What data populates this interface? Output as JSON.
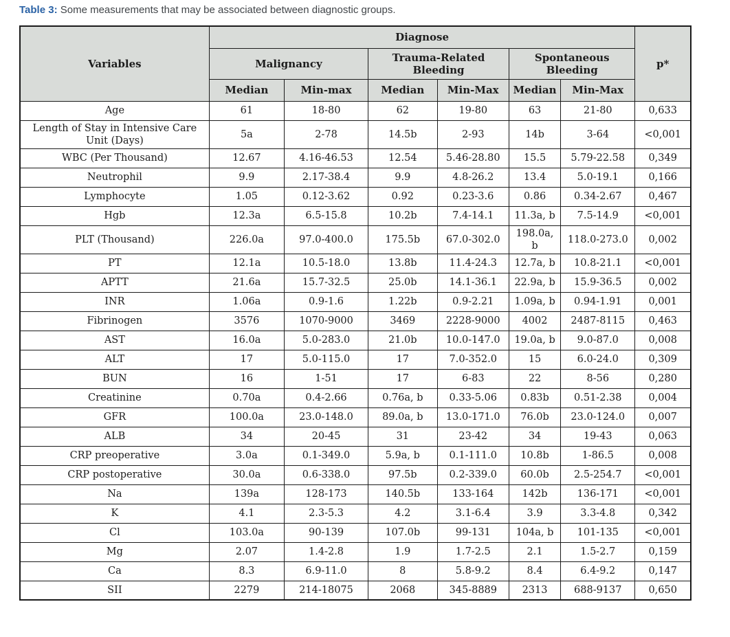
{
  "caption": {
    "label": "Table 3:",
    "text": " Some measurements that may be associated between diagnostic groups."
  },
  "colors": {
    "accent_blue": "#2a62a5",
    "header_bg": "#d9dcd9",
    "border": "#1a1a1a",
    "body_text": "#1d1d1d",
    "caption_text": "#414549"
  },
  "table": {
    "header": {
      "variables": "Variables",
      "diagnose": "Diagnose",
      "p_value": "p*",
      "groups": [
        {
          "name": "Malignancy",
          "median": "Median",
          "minmax": "Min-max"
        },
        {
          "name": "Trauma-Related Bleeding",
          "median": "Median",
          "minmax": "Min-Max"
        },
        {
          "name": "Spontaneous Bleeding",
          "median": "Median",
          "minmax": "Min-Max"
        }
      ]
    },
    "rows": [
      {
        "variable": "Age",
        "values": [
          "61",
          "18-80",
          "62",
          "19-80",
          "63",
          "21-80",
          "0,633"
        ]
      },
      {
        "variable": "Length of Stay in Intensive Care Unit (Days)",
        "values": [
          "5a",
          "2-78",
          "14.5b",
          "2-93",
          "14b",
          "3-64",
          "<0,001"
        ]
      },
      {
        "variable": "WBC (Per Thousand)",
        "values": [
          "12.67",
          "4.16-46.53",
          "12.54",
          "5.46-28.80",
          "15.5",
          "5.79-22.58",
          "0,349"
        ]
      },
      {
        "variable": "Neutrophil",
        "values": [
          "9.9",
          "2.17-38.4",
          "9.9",
          "4.8-26.2",
          "13.4",
          "5.0-19.1",
          "0,166"
        ]
      },
      {
        "variable": "Lymphocyte",
        "values": [
          "1.05",
          "0.12-3.62",
          "0.92",
          "0.23-3.6",
          "0.86",
          "0.34-2.67",
          "0,467"
        ]
      },
      {
        "variable": "Hgb",
        "values": [
          "12.3a",
          "6.5-15.8",
          "10.2b",
          "7.4-14.1",
          "11.3a, b",
          "7.5-14.9",
          "<0,001"
        ]
      },
      {
        "variable": "PLT (Thousand)",
        "values": [
          "226.0a",
          "97.0-400.0",
          "175.5b",
          "67.0-302.0",
          "198.0a, b",
          "118.0-273.0",
          "0,002"
        ]
      },
      {
        "variable": "PT",
        "values": [
          "12.1a",
          "10.5-18.0",
          "13.8b",
          "11.4-24.3",
          "12.7a, b",
          "10.8-21.1",
          "<0,001"
        ]
      },
      {
        "variable": "APTT",
        "values": [
          "21.6a",
          "15.7-32.5",
          "25.0b",
          "14.1-36.1",
          "22.9a, b",
          "15.9-36.5",
          "0,002"
        ]
      },
      {
        "variable": "INR",
        "values": [
          "1.06a",
          "0.9-1.6",
          "1.22b",
          "0.9-2.21",
          "1.09a, b",
          "0.94-1.91",
          "0,001"
        ]
      },
      {
        "variable": "Fibrinogen",
        "values": [
          "3576",
          "1070-9000",
          "3469",
          "2228-9000",
          "4002",
          "2487-8115",
          "0,463"
        ]
      },
      {
        "variable": "AST",
        "values": [
          "16.0a",
          "5.0-283.0",
          "21.0b",
          "10.0-147.0",
          "19.0a, b",
          "9.0-87.0",
          "0,008"
        ]
      },
      {
        "variable": "ALT",
        "values": [
          "17",
          "5.0-115.0",
          "17",
          "7.0-352.0",
          "15",
          "6.0-24.0",
          "0,309"
        ]
      },
      {
        "variable": "BUN",
        "values": [
          "16",
          "1-51",
          "17",
          "6-83",
          "22",
          "8-56",
          "0,280"
        ]
      },
      {
        "variable": "Creatinine",
        "values": [
          "0.70a",
          "0.4-2.66",
          "0.76a, b",
          "0.33-5.06",
          "0.83b",
          "0.51-2.38",
          "0,004"
        ]
      },
      {
        "variable": "GFR",
        "values": [
          "100.0a",
          "23.0-148.0",
          "89.0a, b",
          "13.0-171.0",
          "76.0b",
          "23.0-124.0",
          "0,007"
        ]
      },
      {
        "variable": "ALB",
        "values": [
          "34",
          "20-45",
          "31",
          "23-42",
          "34",
          "19-43",
          "0,063"
        ]
      },
      {
        "variable": "CRP preoperative",
        "values": [
          "3.0a",
          "0.1-349.0",
          "5.9a, b",
          "0.1-111.0",
          "10.8b",
          "1-86.5",
          "0,008"
        ]
      },
      {
        "variable": "CRP postoperative",
        "values": [
          "30.0a",
          "0.6-338.0",
          "97.5b",
          "0.2-339.0",
          "60.0b",
          "2.5-254.7",
          "<0,001"
        ]
      },
      {
        "variable": "Na",
        "values": [
          "139a",
          "128-173",
          "140.5b",
          "133-164",
          "142b",
          "136-171",
          "<0,001"
        ]
      },
      {
        "variable": "K",
        "values": [
          "4.1",
          "2.3-5.3",
          "4.2",
          "3.1-6.4",
          "3.9",
          "3.3-4.8",
          "0,342"
        ]
      },
      {
        "variable": "Cl",
        "values": [
          "103.0a",
          "90-139",
          "107.0b",
          "99-131",
          "104a, b",
          "101-135",
          "<0,001"
        ]
      },
      {
        "variable": "Mg",
        "values": [
          "2.07",
          "1.4-2.8",
          "1.9",
          "1.7-2.5",
          "2.1",
          "1.5-2.7",
          "0,159"
        ]
      },
      {
        "variable": "Ca",
        "values": [
          "8.3",
          "6.9-11.0",
          "8",
          "5.8-9.2",
          "8.4",
          "6.4-9.2",
          "0,147"
        ]
      },
      {
        "variable": "SII",
        "values": [
          "2279",
          "214-18075",
          "2068",
          "345-8889",
          "2313",
          "688-9137",
          "0,650"
        ]
      }
    ]
  }
}
